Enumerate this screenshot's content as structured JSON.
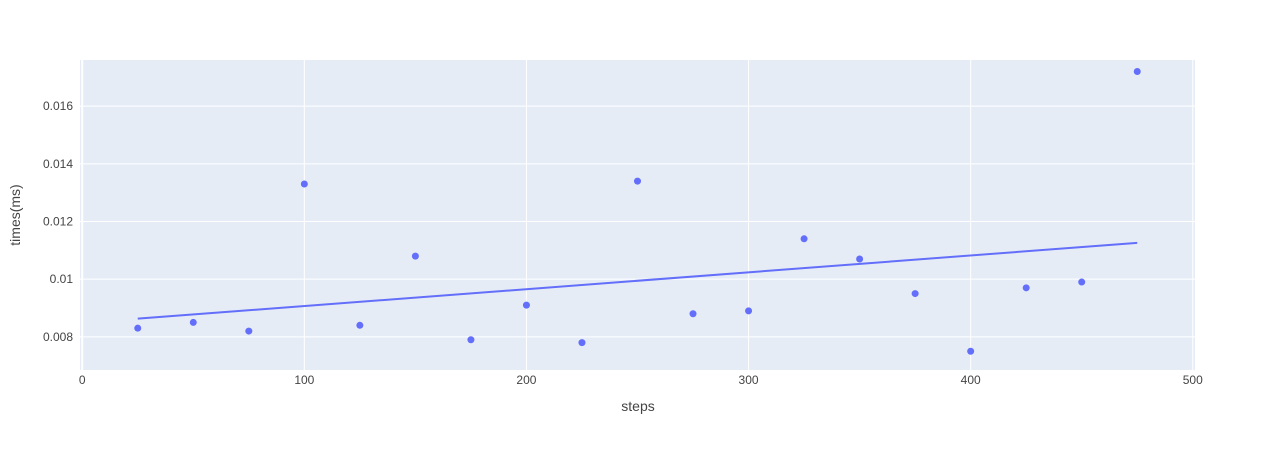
{
  "chart_data": {
    "type": "scatter",
    "title": "",
    "xlabel": "steps",
    "ylabel": "times(ms)",
    "xlim": [
      -1,
      501
    ],
    "ylim": [
      0.00685,
      0.0176
    ],
    "x_ticks": [
      0,
      100,
      200,
      300,
      400,
      500
    ],
    "x_tick_labels": [
      "0",
      "100",
      "200",
      "300",
      "400",
      "500"
    ],
    "y_ticks": [
      0.008,
      0.01,
      0.012,
      0.014,
      0.016
    ],
    "y_tick_labels": [
      "0.008",
      "0.01",
      "0.012",
      "0.014",
      "0.016"
    ],
    "grid": true,
    "colors": {
      "series": "#636efa",
      "plot_bg": "#e5ecf6",
      "grid": "#ffffff",
      "text": "#444444"
    },
    "series": [
      {
        "mode": "markers",
        "x": [
          25,
          50,
          75,
          100,
          125,
          150,
          175,
          200,
          225,
          250,
          275,
          300,
          325,
          350,
          375,
          400,
          425,
          450,
          475
        ],
        "y": [
          0.0083,
          0.0085,
          0.0082,
          0.0133,
          0.0084,
          0.0108,
          0.0079,
          0.0091,
          0.0078,
          0.0134,
          0.0088,
          0.0089,
          0.0114,
          0.0107,
          0.0095,
          0.0075,
          0.0097,
          0.0099,
          0.0172
        ]
      },
      {
        "mode": "lines",
        "x": [
          25,
          475
        ],
        "y": [
          0.00863,
          0.01126
        ]
      }
    ]
  }
}
